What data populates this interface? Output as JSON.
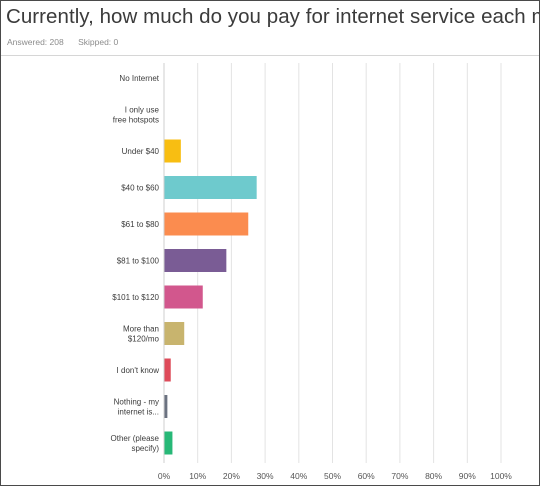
{
  "survey": {
    "question": "Currently, how much do you pay for internet service each month?",
    "answered_label": "Answered: 208",
    "skipped_label": "Skipped: 0"
  },
  "chart_data": {
    "type": "bar",
    "orientation": "horizontal",
    "categories": [
      [
        "No Internet"
      ],
      [
        "I only use",
        "free hotspots"
      ],
      [
        "Under $40"
      ],
      [
        "$40 to $60"
      ],
      [
        "$61 to $80"
      ],
      [
        "$81 to $100"
      ],
      [
        "$101 to $120"
      ],
      [
        "More than",
        "$120/mo"
      ],
      [
        "I don't know"
      ],
      [
        "Nothing - my",
        "internet is..."
      ],
      [
        "Other (please",
        "specify)"
      ]
    ],
    "values": [
      0,
      0,
      5,
      27.5,
      25,
      18.5,
      11.5,
      6,
      2,
      1,
      2.5
    ],
    "colors": [
      "#f0b93a",
      "#f0b93a",
      "#f8be12",
      "#6ecacd",
      "#fb8c4f",
      "#7a5c95",
      "#d2578d",
      "#c8b46e",
      "#de4b5a",
      "#6b7280",
      "#27b877"
    ],
    "xlim": [
      0,
      100
    ],
    "xticks": [
      "0%",
      "10%",
      "20%",
      "30%",
      "40%",
      "50%",
      "60%",
      "70%",
      "80%",
      "90%",
      "100%"
    ],
    "grid": true,
    "legend": "none"
  }
}
